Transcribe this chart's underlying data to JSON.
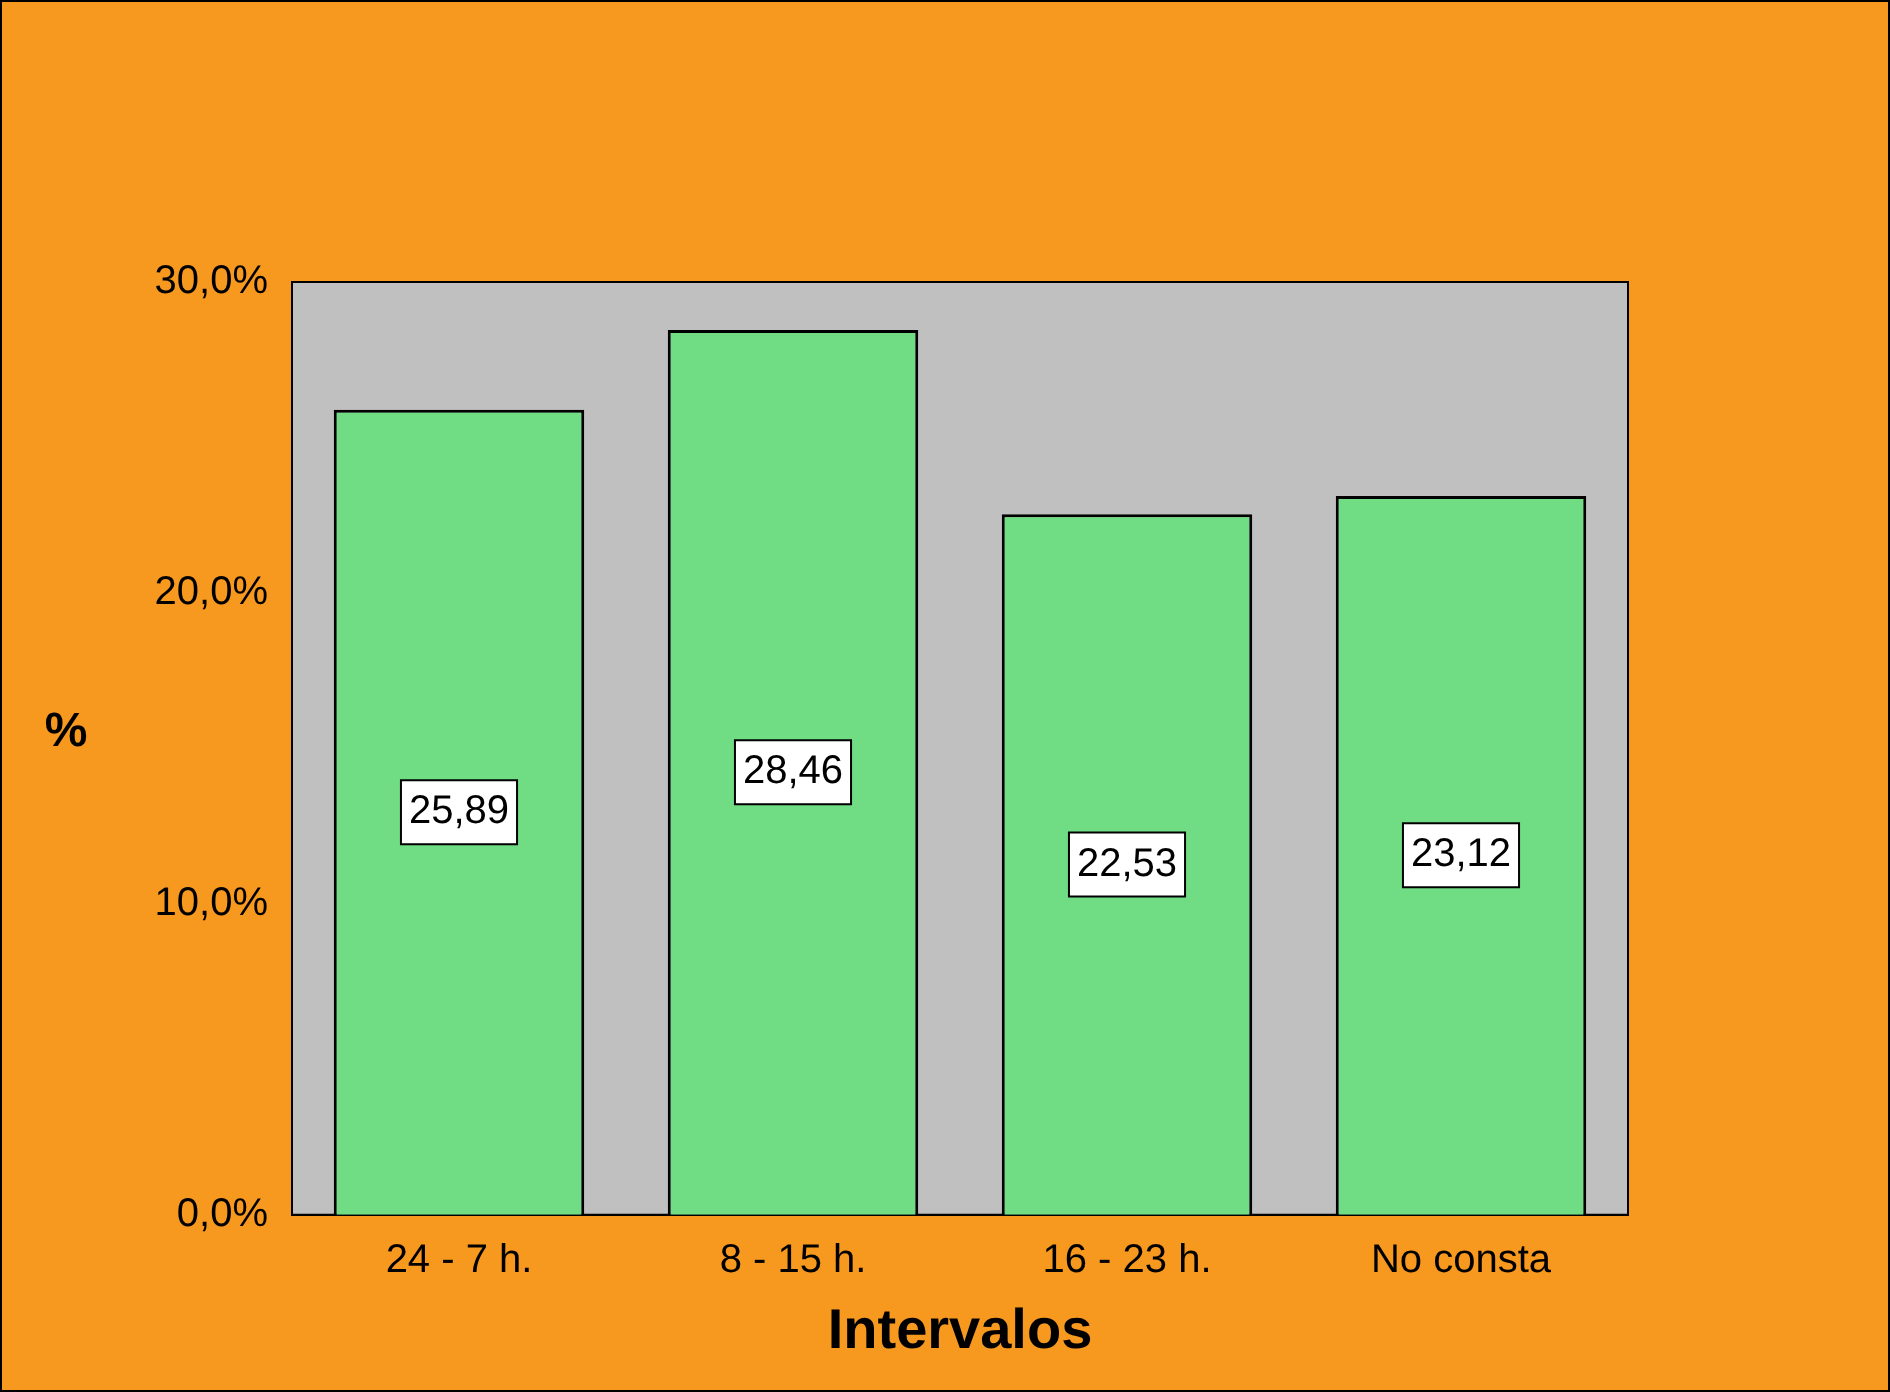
{
  "chart_data": {
    "type": "bar",
    "xlabel": "Intervalos",
    "ylabel": "%",
    "categories": [
      "24 - 7 h.",
      "8 - 15 h.",
      "16 - 23 h.",
      "No consta"
    ],
    "values": [
      25.89,
      28.46,
      22.53,
      23.12
    ],
    "value_labels": [
      "25,89",
      "28,46",
      "22,53",
      "23,12"
    ],
    "color": "#70dc84",
    "ylim": [
      0,
      30
    ],
    "yticks": [
      {
        "value": 0,
        "label": "0,0%"
      },
      {
        "value": 10,
        "label": "10,0%"
      },
      {
        "value": 20,
        "label": "20,0%"
      },
      {
        "value": 30,
        "label": "30,0%"
      }
    ],
    "grid": false,
    "legend": false
  }
}
